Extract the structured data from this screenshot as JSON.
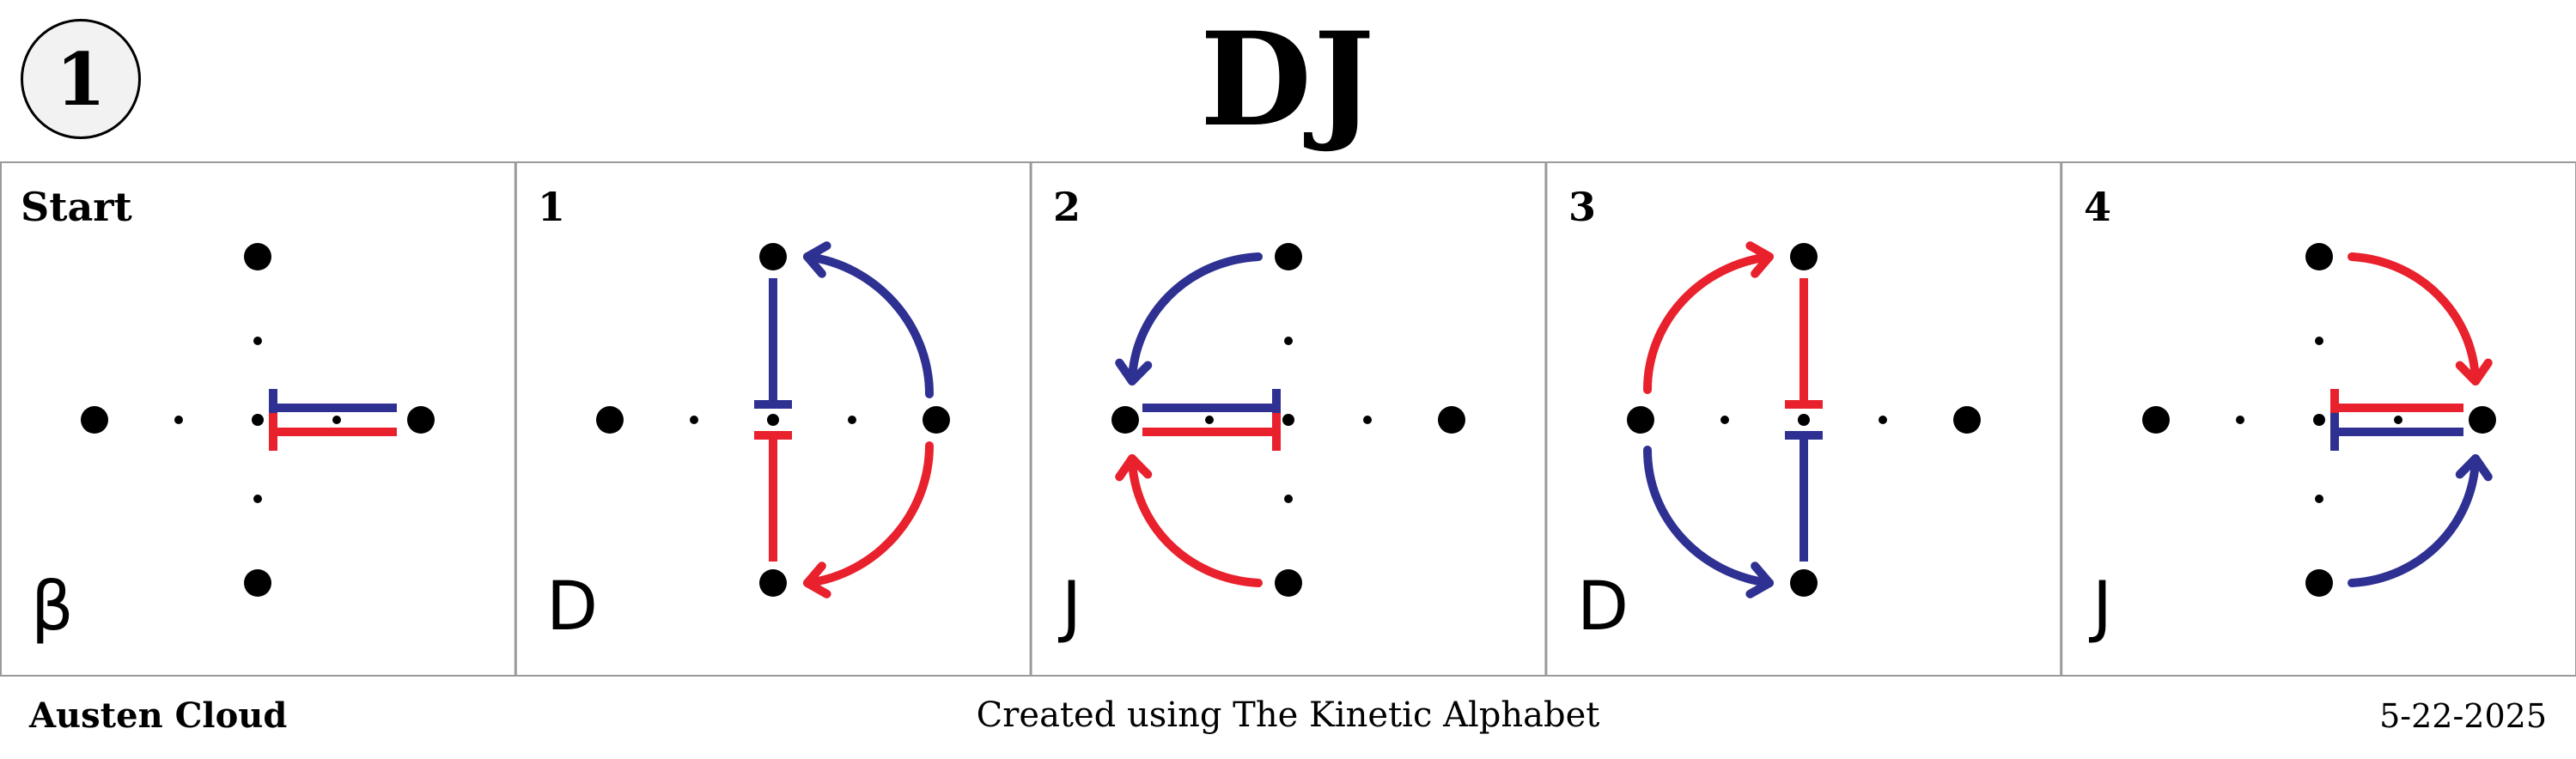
{
  "badge": "1",
  "title": "DJ",
  "colors": {
    "red": "#e8212d",
    "blue": "#2e3192",
    "dot": "#000000",
    "frame": "#9a9a9a"
  },
  "panels": [
    {
      "label": "Start",
      "letter": "β"
    },
    {
      "label": "1",
      "letter": "D"
    },
    {
      "label": "2",
      "letter": "J"
    },
    {
      "label": "3",
      "letter": "D"
    },
    {
      "label": "4",
      "letter": "J"
    }
  ],
  "footer": {
    "author": "Austen Cloud",
    "credit": "Created using The Kinetic Alphabet",
    "date": "5-22-2025"
  }
}
